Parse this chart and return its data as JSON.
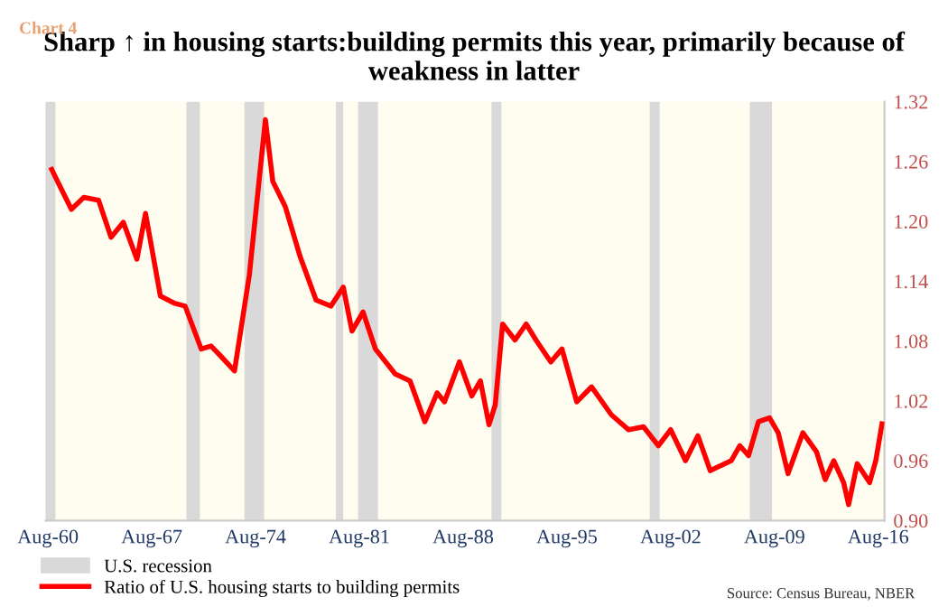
{
  "chart_data": {
    "type": "line",
    "title": "Sharp ↑ in housing starts:building permits this year, primarily because of weakness in latter",
    "annotations": [
      "Chart 4",
      "Source: Census Bureau, NBER"
    ],
    "xlim": [
      "1960-06",
      "2017-01"
    ],
    "xticks": [
      {
        "value": "1960-08",
        "label": "Aug-60"
      },
      {
        "value": "1967-08",
        "label": "Aug-67"
      },
      {
        "value": "1974-08",
        "label": "Aug-74"
      },
      {
        "value": "1981-08",
        "label": "Aug-81"
      },
      {
        "value": "1988-08",
        "label": "Aug-88"
      },
      {
        "value": "1995-08",
        "label": "Aug-95"
      },
      {
        "value": "2002-08",
        "label": "Aug-02"
      },
      {
        "value": "2009-08",
        "label": "Aug-09"
      },
      {
        "value": "2016-08",
        "label": "Aug-16"
      }
    ],
    "ylim": [
      0.9,
      1.32
    ],
    "yticks": [
      {
        "value": 0.9,
        "label": "0.90"
      },
      {
        "value": 0.96,
        "label": "0.96"
      },
      {
        "value": 1.02,
        "label": "1.02"
      },
      {
        "value": 1.08,
        "label": "1.08"
      },
      {
        "value": 1.14,
        "label": "1.14"
      },
      {
        "value": 1.2,
        "label": "1.20"
      },
      {
        "value": 1.26,
        "label": "1.26"
      },
      {
        "value": 1.32,
        "label": "1.32"
      }
    ],
    "grid": false,
    "legend": "bottom left",
    "bands": [
      {
        "axis": "x",
        "from": "1960-04",
        "to": "1961-02",
        "label": "U.S. recession",
        "color": "#d9d9d9"
      },
      {
        "axis": "x",
        "from": "1969-12",
        "to": "1970-11",
        "color": "#d9d9d9"
      },
      {
        "axis": "x",
        "from": "1973-11",
        "to": "1975-03",
        "color": "#d9d9d9"
      },
      {
        "axis": "x",
        "from": "1980-01",
        "to": "1980-07",
        "color": "#d9d9d9"
      },
      {
        "axis": "x",
        "from": "1981-07",
        "to": "1982-11",
        "color": "#d9d9d9"
      },
      {
        "axis": "x",
        "from": "1990-07",
        "to": "1991-03",
        "color": "#d9d9d9"
      },
      {
        "axis": "x",
        "from": "2001-03",
        "to": "2001-11",
        "color": "#d9d9d9"
      },
      {
        "axis": "x",
        "from": "2007-12",
        "to": "2009-06",
        "color": "#d9d9d9"
      }
    ],
    "series": [
      {
        "name": "Ratio of U.S. housing starts to building permits",
        "color": "#ff0000",
        "x": [
          "1960-11",
          "1961-05",
          "1962-03",
          "1963-01",
          "1964-01",
          "1964-11",
          "1965-09",
          "1966-08",
          "1967-03",
          "1968-03",
          "1969-02",
          "1969-11",
          "1970-12",
          "1971-08",
          "1972-03",
          "1973-03",
          "1974-03",
          "1975-04",
          "1975-10",
          "1976-08",
          "1977-08",
          "1978-09",
          "1979-09",
          "1980-07",
          "1981-02",
          "1981-11",
          "1982-09",
          "1984-01",
          "1985-01",
          "1986-01",
          "1986-11",
          "1987-05",
          "1988-05",
          "1989-03",
          "1989-10",
          "1990-05",
          "1990-10",
          "1991-04",
          "1992-02",
          "1992-11",
          "1993-07",
          "1994-07",
          "1995-04",
          "1996-04",
          "1997-04",
          "1998-08",
          "1999-10",
          "2000-10",
          "2001-10",
          "2002-08",
          "2003-08",
          "2004-06",
          "2005-04",
          "2006-09",
          "2007-04",
          "2007-11",
          "2008-07",
          "2009-04",
          "2009-11",
          "2010-07",
          "2011-07",
          "2012-06",
          "2013-01",
          "2013-08",
          "2014-04",
          "2014-08",
          "2015-03",
          "2016-01",
          "2016-06",
          "2016-11"
        ],
        "values": [
          1.252,
          1.237,
          1.212,
          1.224,
          1.221,
          1.184,
          1.199,
          1.162,
          1.208,
          1.125,
          1.118,
          1.115,
          1.072,
          1.075,
          1.066,
          1.05,
          1.146,
          1.302,
          1.24,
          1.215,
          1.165,
          1.121,
          1.115,
          1.134,
          1.09,
          1.109,
          1.072,
          1.047,
          1.04,
          0.999,
          1.028,
          1.019,
          1.059,
          1.025,
          1.04,
          0.996,
          1.016,
          1.097,
          1.081,
          1.097,
          1.081,
          1.059,
          1.072,
          1.019,
          1.034,
          1.006,
          0.991,
          0.994,
          0.975,
          0.991,
          0.96,
          0.985,
          0.95,
          0.96,
          0.975,
          0.965,
          0.999,
          1.003,
          0.988,
          0.947,
          0.988,
          0.969,
          0.941,
          0.96,
          0.938,
          0.916,
          0.957,
          0.938,
          0.96,
          0.997
        ]
      }
    ]
  }
}
